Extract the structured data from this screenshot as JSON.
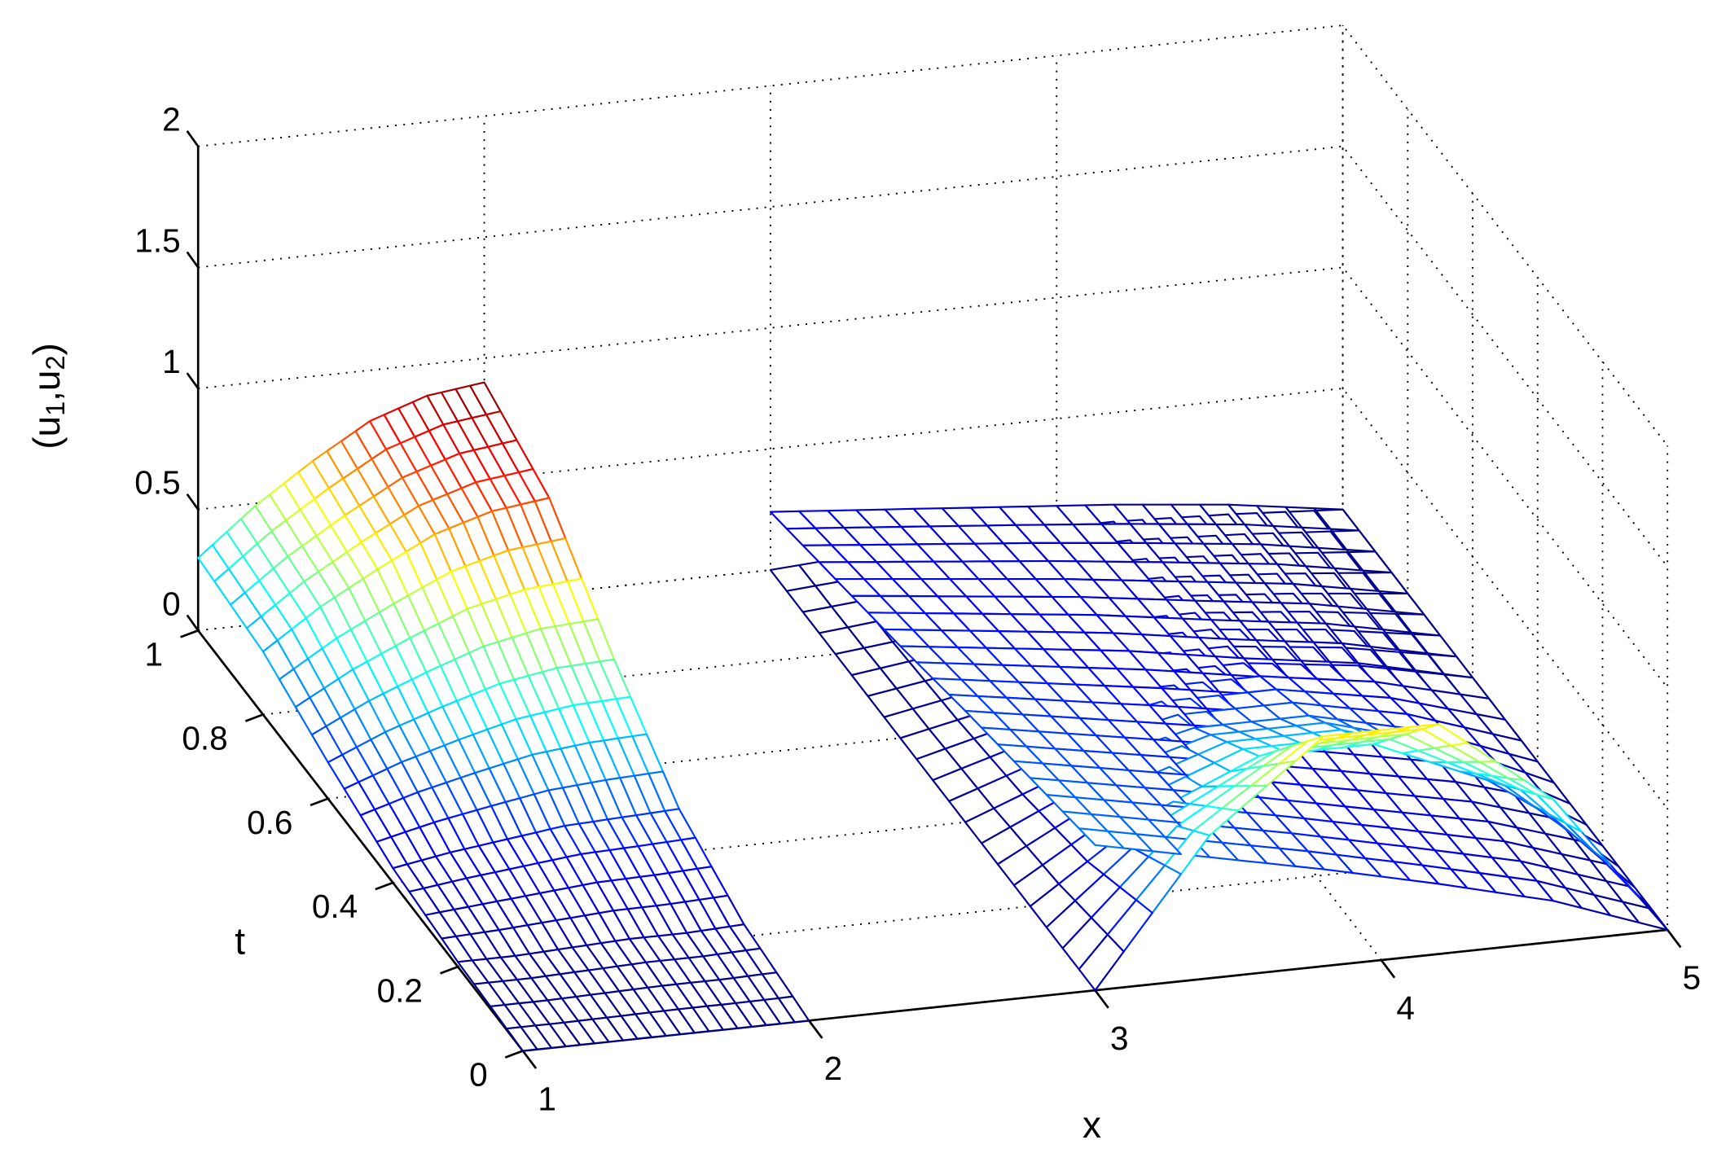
{
  "chart_data": {
    "type": "surface",
    "xlabel": "x",
    "ylabel": "t",
    "zlabel": "(u1,u2)",
    "xlim": [
      1,
      5
    ],
    "ylim": [
      0,
      1
    ],
    "zlim": [
      0,
      2
    ],
    "xticks": [
      1,
      2,
      3,
      4,
      5
    ],
    "yticks": [
      0,
      0.2,
      0.4,
      0.6,
      0.8,
      1
    ],
    "zticks": [
      0,
      0.5,
      1,
      1.5,
      2
    ],
    "grid": true,
    "colormap": "jet",
    "surfaces": [
      {
        "x": [
          1,
          1.2,
          1.4,
          1.6,
          1.8,
          2
        ],
        "y": [
          0,
          0.2,
          0.4,
          0.6,
          0.8,
          1
        ],
        "clim": [
          0,
          0.9
        ],
        "z": [
          [
            0,
            0,
            0,
            0,
            0,
            0
          ],
          [
            0.02,
            0.02,
            0.03,
            0.04,
            0.04,
            0.05
          ],
          [
            0.06,
            0.1,
            0.13,
            0.16,
            0.17,
            0.18
          ],
          [
            0.15,
            0.25,
            0.33,
            0.4,
            0.44,
            0.45
          ],
          [
            0.26,
            0.42,
            0.55,
            0.67,
            0.74,
            0.77
          ],
          [
            0.3,
            0.49,
            0.65,
            0.79,
            0.87,
            0.9
          ]
        ]
      },
      {
        "x": [
          3,
          3.4,
          3.8,
          4.2,
          4.6,
          5
        ],
        "y": [
          0,
          0.2,
          0.4,
          0.6,
          0.8,
          1
        ],
        "clim": [
          0,
          2.4
        ],
        "z": [
          [
            0.6,
            0.5,
            0.4,
            0.29,
            0.17,
            0
          ],
          [
            0.53,
            0.44,
            0.35,
            0.25,
            0.15,
            0
          ],
          [
            0.46,
            0.38,
            0.3,
            0.22,
            0.13,
            0
          ],
          [
            0.38,
            0.32,
            0.26,
            0.18,
            0.11,
            0
          ],
          [
            0.31,
            0.26,
            0.21,
            0.15,
            0.09,
            0
          ],
          [
            0.24,
            0.2,
            0.16,
            0.12,
            0.07,
            0
          ]
        ]
      },
      {
        "x": [
          3,
          3.4,
          3.8,
          4.2,
          4.6,
          5
        ],
        "y": [
          0,
          0.2,
          0.4,
          0.6,
          0.8,
          1
        ],
        "clim": [
          0,
          1.4
        ],
        "z": [
          [
            0,
            0.59,
            0.95,
            0.95,
            0.59,
            0
          ],
          [
            0,
            0.32,
            0.52,
            0.52,
            0.32,
            0
          ],
          [
            0,
            0.18,
            0.29,
            0.29,
            0.18,
            0
          ],
          [
            0,
            0.1,
            0.16,
            0.16,
            0.1,
            0
          ],
          [
            0,
            0.05,
            0.09,
            0.09,
            0.05,
            0
          ],
          [
            0,
            0.03,
            0.05,
            0.05,
            0.03,
            0
          ]
        ]
      }
    ]
  }
}
